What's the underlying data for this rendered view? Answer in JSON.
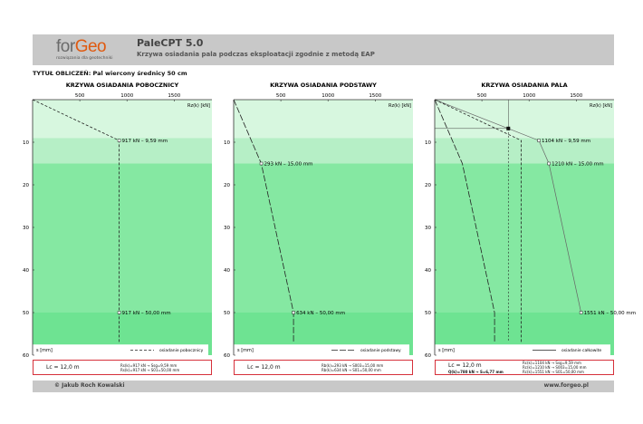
{
  "header": {
    "logo_a": "for",
    "logo_b": "Geo",
    "logo_sub": "rozwiązania dla geotechniki",
    "app": "PaleCPT 5.0",
    "subtitle": "Krzywa osiadania pala podczas eksploatacji zgodnie z metodą EAP"
  },
  "calc_title": "TYTUŁ OBLICZEŃ: Pal wiercony średnicy 50 cm",
  "footer": {
    "left": "© Jakub Roch Kowalski",
    "right": "www.forgeo.pl"
  },
  "axis": {
    "rz": "Rz(k) [kN]",
    "s": "s [mm]",
    "x_ticks": [
      "500",
      "1000",
      "1500"
    ],
    "y_ticks": [
      "10",
      "20",
      "30",
      "40",
      "50",
      "60"
    ]
  },
  "colors": {
    "light": "#d7f7df",
    "mid": "#b6efc6",
    "green": "#85e8a2",
    "dark": "#6ee392",
    "box": "#d6303a"
  },
  "chart_data": [
    {
      "type": "line",
      "title": "KRZYWA OSIADANIA POBOCZNICY",
      "legend": "osiadanie pobocznicy",
      "xlim": [
        0,
        1900
      ],
      "ylim": [
        0,
        60
      ],
      "series": [
        {
          "x": [
            0,
            917,
            917
          ],
          "y": [
            0,
            9.59,
            57
          ]
        }
      ],
      "labels": [
        {
          "x": 917,
          "y": 9.59,
          "text": "917 kN – 9,59 mm"
        },
        {
          "x": 917,
          "y": 50,
          "text": "917 kN – 50,00 mm"
        }
      ]
    },
    {
      "type": "line",
      "title": "KRZYWA OSIADANIA PODSTAWY",
      "legend": "osiadanie podstawy",
      "xlim": [
        0,
        1900
      ],
      "ylim": [
        0,
        60
      ],
      "series": [
        {
          "x": [
            0,
            293,
            634,
            634
          ],
          "y": [
            0,
            15,
            50,
            57
          ]
        }
      ],
      "labels": [
        {
          "x": 293,
          "y": 15,
          "text": "293 kN – 15,00 mm"
        },
        {
          "x": 634,
          "y": 50,
          "text": "634 kN – 50,00 mm"
        }
      ]
    },
    {
      "type": "line",
      "title": "KRZYWA OSIADANIA PALA",
      "legend": "osiadanie całkowite",
      "xlim": [
        0,
        1900
      ],
      "ylim": [
        0,
        60
      ],
      "series": [
        {
          "x": [
            0,
            1104,
            1210,
            1551
          ],
          "y": [
            0,
            9.59,
            15,
            50
          ]
        },
        {
          "x": [
            0,
            917,
            917
          ],
          "y": [
            0,
            9.59,
            57
          ]
        },
        {
          "x": [
            0,
            293,
            634,
            634
          ],
          "y": [
            0,
            15,
            50,
            57
          ]
        }
      ],
      "labels": [
        {
          "x": 1104,
          "y": 9.59,
          "text": "1104 kN – 9,59 mm"
        },
        {
          "x": 1210,
          "y": 15,
          "text": "1210 kN – 15,00 mm"
        },
        {
          "x": 1551,
          "y": 50,
          "text": "1551 kN – 50,00 mm"
        }
      ],
      "marker": {
        "x": 780,
        "y": 6.77
      }
    }
  ],
  "info": [
    {
      "lc": "Lc = 12,0 m",
      "lines": [
        "Rs(k)=917 kN  →  Ssg=9,59 mm",
        "Rs(k)=917 kN  →  S01=50,00 mm"
      ]
    },
    {
      "lc": "Lc = 12,0 m",
      "lines": [
        "Rb(k)=293 kN  →  S003=15,00 mm",
        "Rb(k)=634 kN  →  S01=50,00 mm"
      ]
    },
    {
      "lc": "Lc = 12,0 m",
      "q": "Q(k)=780 kN  →  S=6,77 mm",
      "lines": [
        "Rc(k)=1104 kN  →  Ssg=9,59 mm",
        "Rc(k)=1210 kN  →  S003=15,00 mm",
        "Rc(k)=1551 kN  →  S01=50,00 mm"
      ]
    }
  ]
}
